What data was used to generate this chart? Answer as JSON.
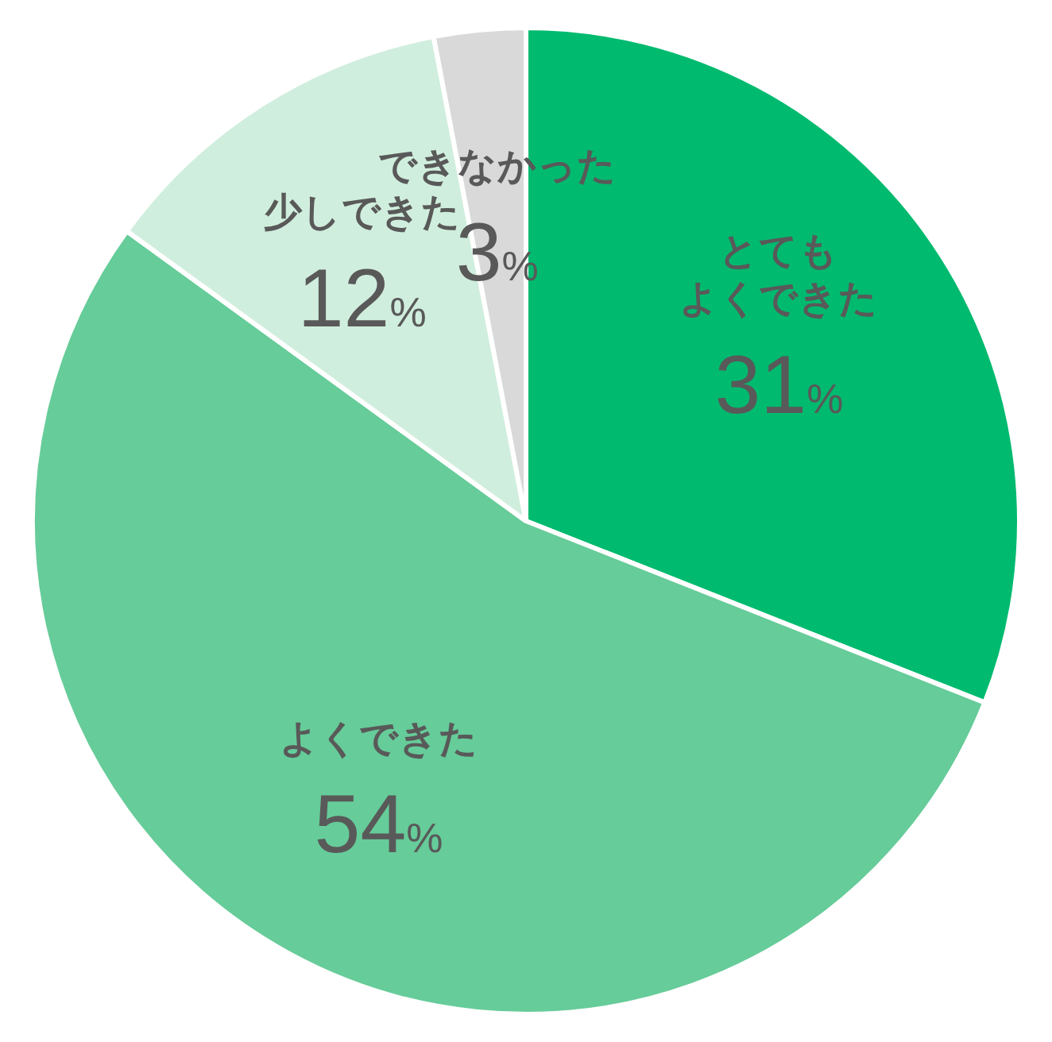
{
  "chart_data": {
    "type": "pie",
    "categories": [
      "とてもよくできた",
      "よくできた",
      "少しできた",
      "できなかった"
    ],
    "values": [
      31,
      54,
      12,
      3
    ],
    "colors": [
      "#00ba6f",
      "#66cc99",
      "#d0eedd",
      "#d9d9d9"
    ],
    "value_labels": [
      "31%",
      "54%",
      "12%",
      "3%"
    ],
    "legend": false
  }
}
